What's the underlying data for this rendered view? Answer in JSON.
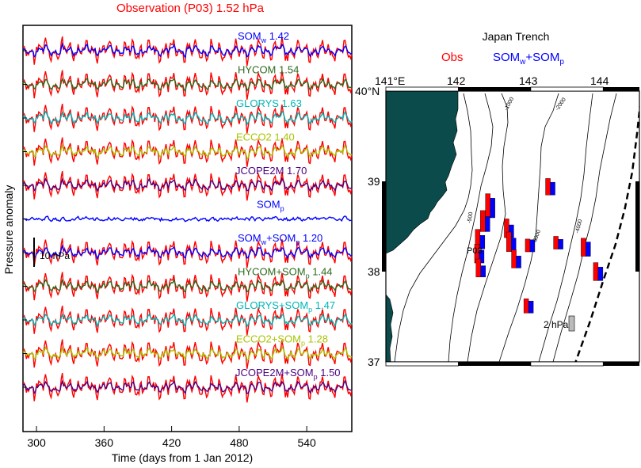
{
  "colors": {
    "obs": "#ff0000",
    "somw": "#0000ff",
    "hycom": "#2d6a1e",
    "glorys": "#00b5b5",
    "ecco2": "#a8c400",
    "jcope": "#4b0082",
    "land": "#0b4b4b",
    "frame": "#000000",
    "scale_box": "#bbbbbb"
  },
  "left_panel": {
    "title": "Observation (P03) 1.52 hPa",
    "ylabel": "Pressure anomaly",
    "xlabel": "Time (days from 1 Jan 2012)",
    "scale_bar_label": "10 hPa",
    "xticks": [
      "300",
      "360",
      "420",
      "480",
      "540"
    ]
  },
  "right_panel": {
    "title": "Japan Trench",
    "legend_obs": "Obs",
    "legend_model_main": "SOM",
    "legend_model_sub1": "w",
    "legend_model_plus": "+SOM",
    "legend_model_sub2": "p",
    "lon_labels": [
      "141°E",
      "142",
      "143",
      "144"
    ],
    "lat_labels": [
      "40°N",
      "39",
      "38",
      "37"
    ],
    "station_label": "P03",
    "scale_label": "2 hPa",
    "contour_labels": [
      "-1000",
      "-2000",
      "-500",
      "-3000",
      "-4000"
    ]
  },
  "chart_data": [
    {
      "type": "line",
      "title": "Observation (P03) 1.52 hPa",
      "xlabel": "Time (days from 1 Jan 2012)",
      "ylabel": "Pressure anomaly",
      "xlim": [
        288,
        580
      ],
      "xticks": [
        300,
        360,
        420,
        480,
        540
      ],
      "scale_bar_hPa": 10,
      "grid": false,
      "series": [
        {
          "name": "SOMw",
          "label": "SOM",
          "sub": "w",
          "suffix": " 1.42",
          "rms_hPa": 1.42,
          "color_key": "somw",
          "obs_overlay": true
        },
        {
          "name": "HYCOM",
          "label": "HYCOM 1.54",
          "rms_hPa": 1.54,
          "color_key": "hycom",
          "obs_overlay": true
        },
        {
          "name": "GLORYS",
          "label": "GLORYS 1.63",
          "rms_hPa": 1.63,
          "color_key": "glorys",
          "obs_overlay": true
        },
        {
          "name": "ECCO2",
          "label": "ECCO2 1.40",
          "rms_hPa": 1.4,
          "color_key": "ecco2",
          "obs_overlay": true
        },
        {
          "name": "JCOPE2M",
          "label": "JCOPE2M 1.70",
          "rms_hPa": 1.7,
          "color_key": "jcope",
          "obs_overlay": true
        },
        {
          "name": "SOMp",
          "label": "SOM",
          "sub": "p",
          "suffix": "",
          "color_key": "somw",
          "obs_overlay": false
        },
        {
          "name": "SOMw+SOMp",
          "label": "SOM",
          "sub": "w",
          "mid": "+SOM",
          "sub2": "p",
          "suffix": " 1.20",
          "rms_hPa": 1.2,
          "color_key": "somw",
          "obs_overlay": true
        },
        {
          "name": "HYCOM+SOMp",
          "label": "HYCOM+SOM",
          "sub": "p",
          "suffix": " 1.44",
          "rms_hPa": 1.44,
          "color_key": "hycom",
          "obs_overlay": true
        },
        {
          "name": "GLORYS+SOMp",
          "label": "GLORYS+SOM",
          "sub": "p",
          "suffix": " 1.47",
          "rms_hPa": 1.47,
          "color_key": "glorys",
          "obs_overlay": true
        },
        {
          "name": "ECCO2+SOMp",
          "label": "ECCO2+SOM",
          "sub": "p",
          "suffix": " 1.28",
          "rms_hPa": 1.28,
          "color_key": "ecco2",
          "obs_overlay": true
        },
        {
          "name": "JCOPE2M+SOMp",
          "label": "JCOPE2M+SOM",
          "sub": "p",
          "suffix": " 1.50",
          "rms_hPa": 1.5,
          "color_key": "jcope",
          "obs_overlay": true
        }
      ]
    },
    {
      "type": "bar",
      "title": "Japan Trench",
      "xlim": [
        141.0,
        144.5
      ],
      "ylim": [
        37.0,
        40.0
      ],
      "bar_series": [
        {
          "name": "Obs",
          "color_key": "obs"
        },
        {
          "name": "SOMw+SOMp",
          "color_key": "somw"
        }
      ],
      "scale_bar_hPa": 2,
      "stations": [
        {
          "lon": 142.44,
          "lat": 38.73,
          "obs": 3.2,
          "model": 2.6
        },
        {
          "lon": 142.37,
          "lat": 38.56,
          "obs": 2.8,
          "model": 2.0
        },
        {
          "lon": 142.3,
          "lat": 38.36,
          "obs": 2.6,
          "model": 1.8
        },
        {
          "lon": 142.29,
          "lat": 38.2,
          "obs": 2.5,
          "model": 1.7
        },
        {
          "lon": 142.31,
          "lat": 38.04,
          "obs": 2.4,
          "model": 1.5
        },
        {
          "lon": 142.7,
          "lat": 38.48,
          "obs": 2.5,
          "model": 1.7
        },
        {
          "lon": 142.73,
          "lat": 38.33,
          "obs": 2.6,
          "model": 1.8
        },
        {
          "lon": 142.8,
          "lat": 38.14,
          "obs": 2.4,
          "model": 1.6
        },
        {
          "lon": 142.99,
          "lat": 38.29,
          "obs": 1.7,
          "model": 1.6
        },
        {
          "lon": 143.27,
          "lat": 38.94,
          "obs": 2.2,
          "model": 1.7
        },
        {
          "lon": 143.38,
          "lat": 38.32,
          "obs": 1.7,
          "model": 1.3
        },
        {
          "lon": 143.76,
          "lat": 38.27,
          "obs": 2.4,
          "model": 1.9
        },
        {
          "lon": 143.93,
          "lat": 38.0,
          "obs": 2.4,
          "model": 1.8
        },
        {
          "lon": 142.97,
          "lat": 37.62,
          "obs": 1.9,
          "model": 1.6
        }
      ],
      "trench_axis": [
        [
          144.53,
          40.0
        ],
        [
          144.47,
          39.55
        ],
        [
          144.4,
          39.1
        ],
        [
          144.3,
          38.7
        ],
        [
          144.17,
          38.3
        ],
        [
          144.0,
          37.9
        ],
        [
          143.82,
          37.45
        ],
        [
          143.62,
          37.0
        ]
      ]
    }
  ]
}
